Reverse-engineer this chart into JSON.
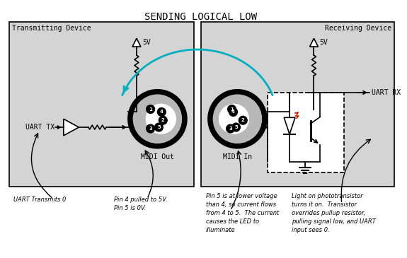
{
  "title": "SENDING LOGICAL LOW",
  "title_fontsize": 10,
  "bg_color": "#d4d4d4",
  "white": "#ffffff",
  "black": "#000000",
  "cyan": "#00b0c0",
  "red": "#cc2200",
  "label_transmitting": "Transmitting Device",
  "label_receiving": "Receiving Device",
  "label_uart_tx": "UART TX",
  "label_uart_rx": "UART RX",
  "label_midi_out": "MIDI Out",
  "label_midi_in": "MIDI In",
  "label_5v_left": "5V",
  "label_5v_right": "5V",
  "annotation1": "UART Transmits 0",
  "annotation2": "Pin 4 pulled to 5V.\nPin 5 is 0V.",
  "annotation3": "Pin 5 is at lower voltage\nthan 4, so current flows\nfrom 4 to 5.  The current\ncauses the LED to\nilluminate",
  "annotation4": "Light on phototransistor\nturns it on.  Transistor\noverrides pullup resistor,\npulling signal low, and UART\ninput sees 0."
}
